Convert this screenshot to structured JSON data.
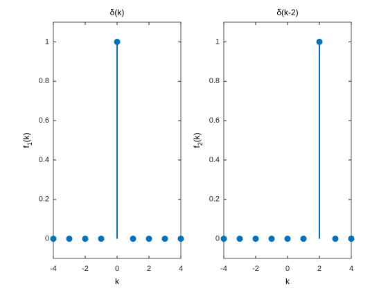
{
  "chart_data": [
    {
      "type": "stem",
      "title": "δ(k)",
      "xlabel": "k",
      "ylabel": [
        "f",
        "1",
        "(k)"
      ],
      "x": [
        -4,
        -3,
        -2,
        -1,
        0,
        1,
        2,
        3,
        4
      ],
      "values": [
        0,
        0,
        0,
        0,
        1,
        0,
        0,
        0,
        0
      ],
      "color": "#0072bd",
      "xlim": [
        -4,
        4
      ],
      "xticks": [
        -4,
        -2,
        0,
        2,
        4
      ],
      "ylim": [
        -0.1,
        1.1
      ],
      "yticks": [
        0,
        0.2,
        0.4,
        0.6,
        0.8,
        1
      ]
    },
    {
      "type": "stem",
      "title": "δ(k-2)",
      "xlabel": "k",
      "ylabel": [
        "f",
        "2",
        "(k)"
      ],
      "x": [
        -4,
        -3,
        -2,
        -1,
        0,
        1,
        2,
        3,
        4
      ],
      "values": [
        0,
        0,
        0,
        0,
        0,
        0,
        1,
        0,
        0
      ],
      "color": "#0072bd",
      "xlim": [
        -4,
        4
      ],
      "xticks": [
        -4,
        -2,
        0,
        2,
        4
      ],
      "ylim": [
        -0.1,
        1.1
      ],
      "yticks": [
        0,
        0.2,
        0.4,
        0.6,
        0.8,
        1
      ]
    }
  ]
}
